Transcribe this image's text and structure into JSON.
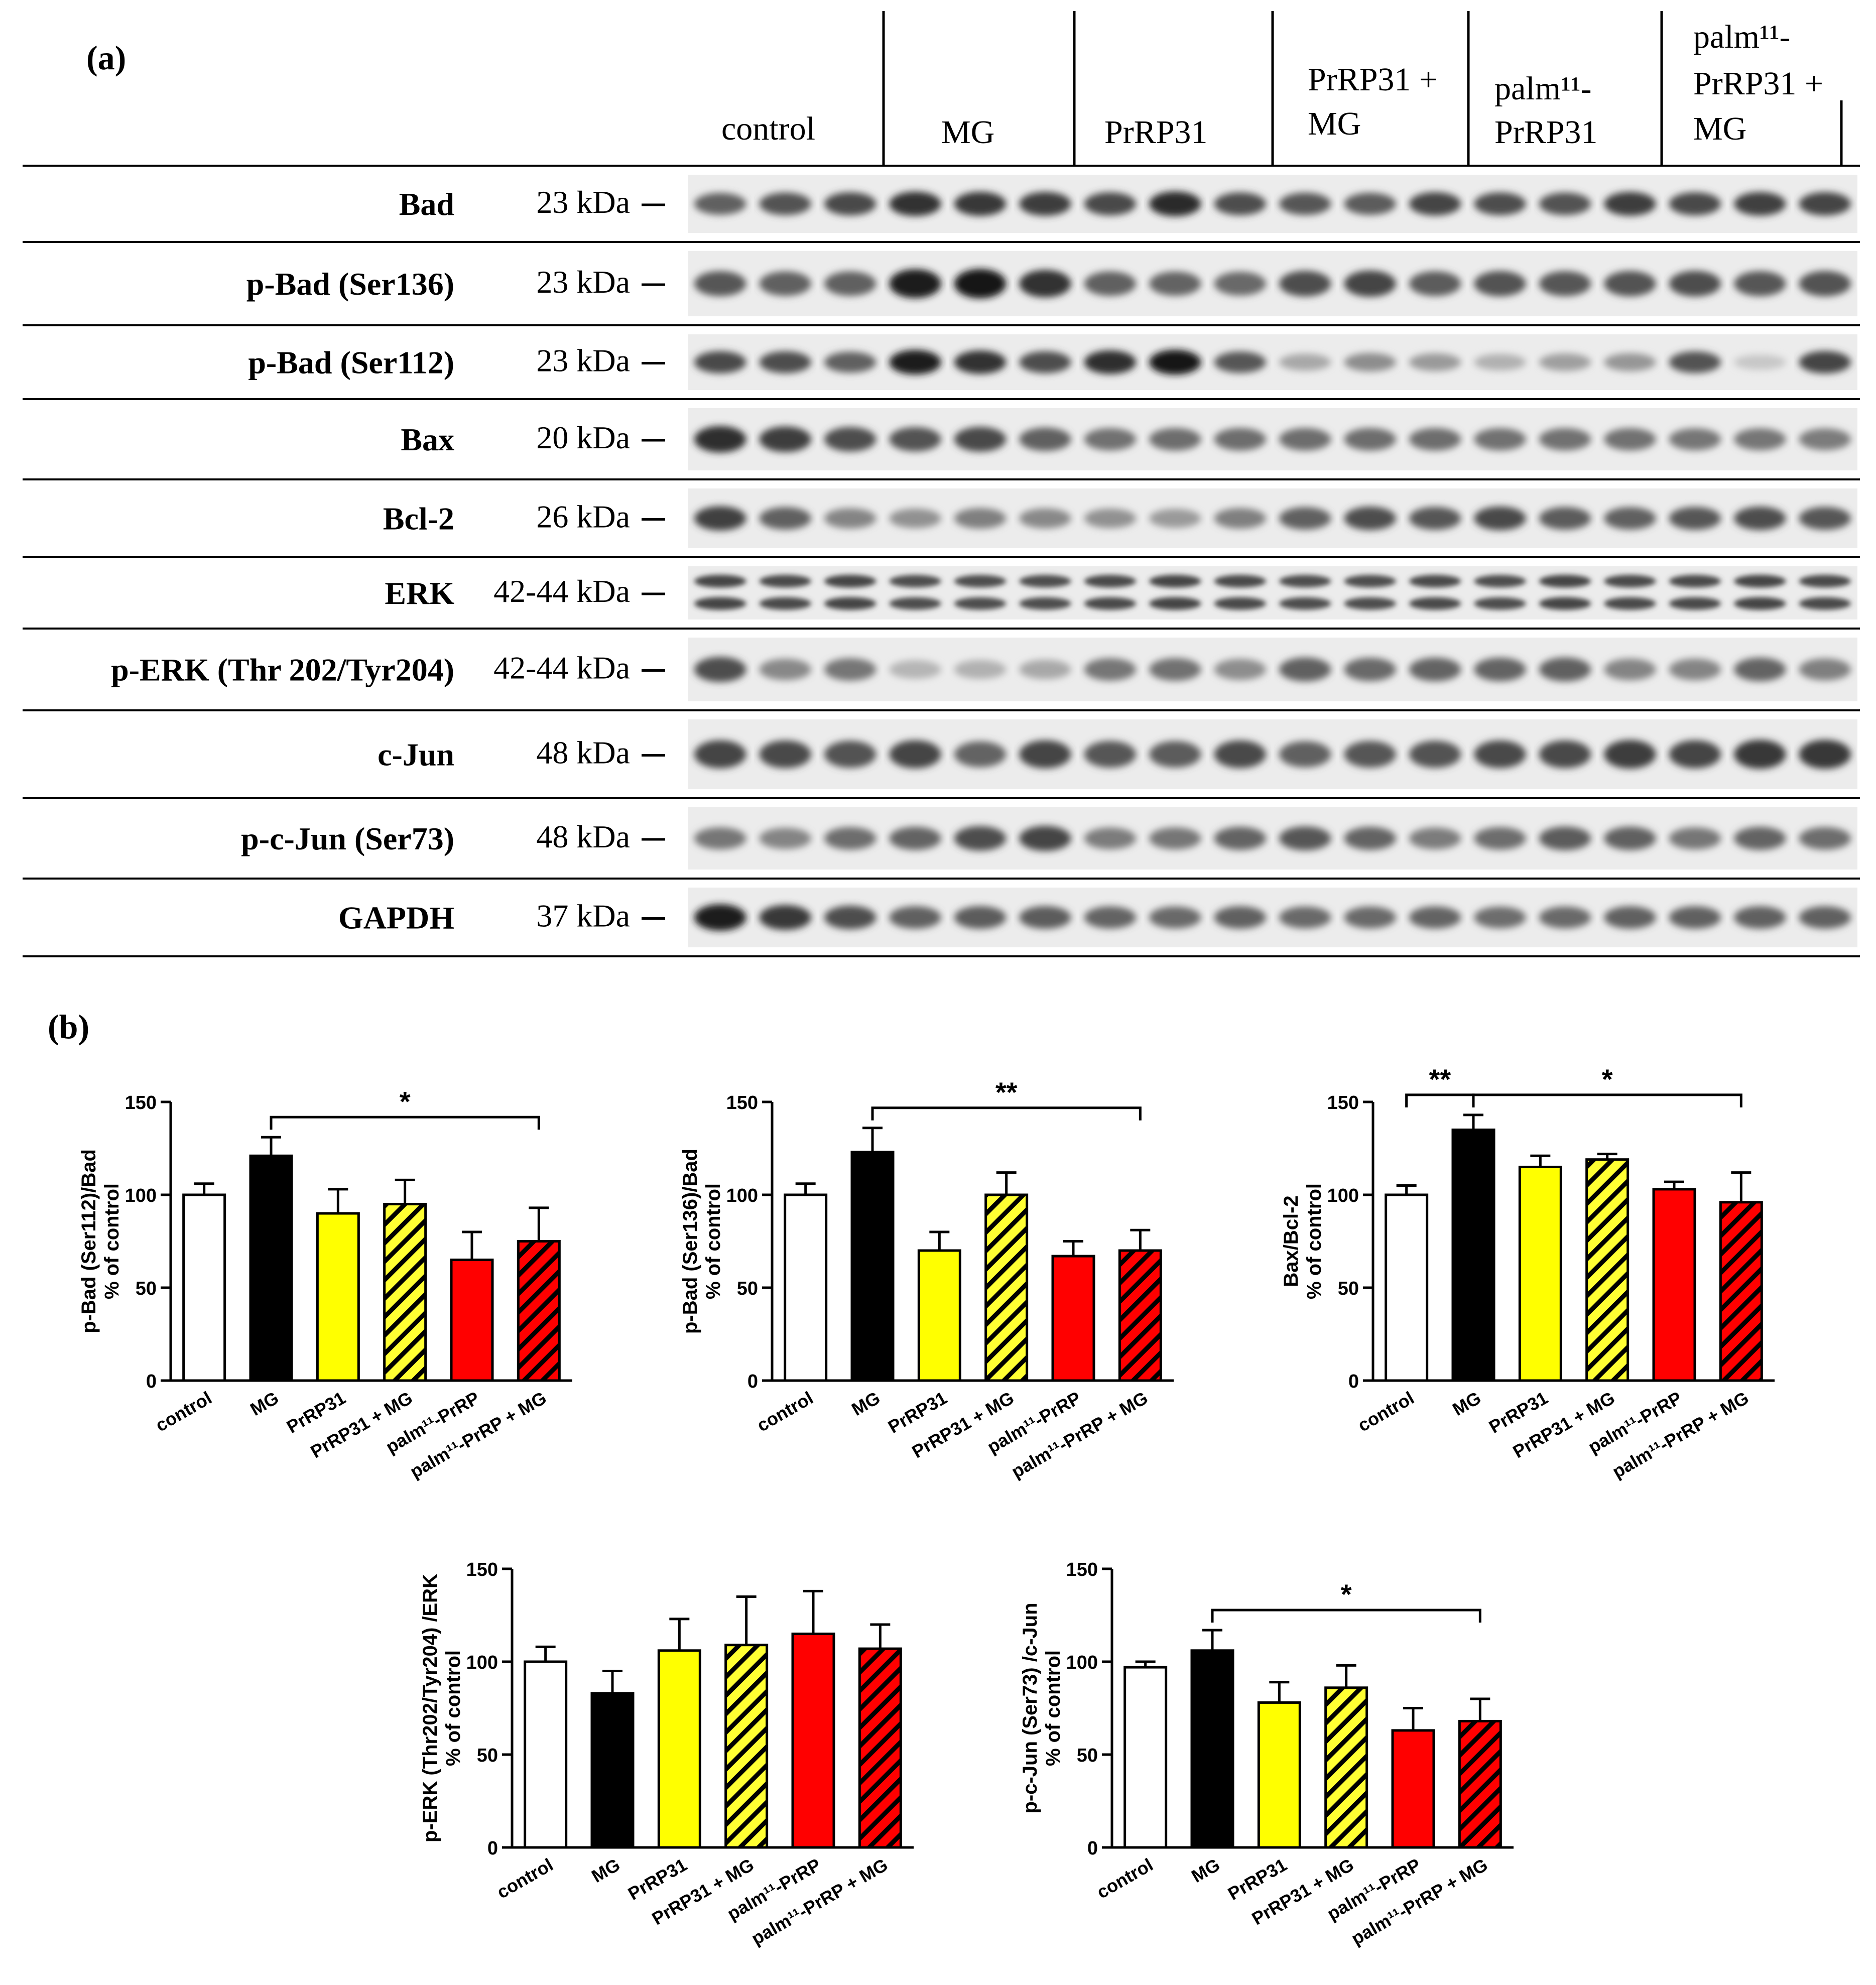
{
  "panel_a": {
    "label": "(a)",
    "groups": [
      {
        "lines": [
          "control"
        ]
      },
      {
        "lines": [
          "MG"
        ]
      },
      {
        "lines": [
          "PrRP31"
        ]
      },
      {
        "lines": [
          "PrRP31 +",
          "MG"
        ]
      },
      {
        "lines": [
          "palm¹¹-",
          "PrRP31"
        ]
      },
      {
        "lines": [
          "palm¹¹-",
          "PrRP31 +",
          "MG"
        ]
      }
    ],
    "blots": [
      {
        "name": "Bad",
        "size": "23 kDa",
        "intensities": [
          0.62,
          0.68,
          0.72,
          0.82,
          0.8,
          0.78,
          0.72,
          0.85,
          0.7,
          0.66,
          0.64,
          0.74,
          0.7,
          0.68,
          0.78,
          0.72,
          0.76,
          0.74
        ]
      },
      {
        "name": "p-Bad (Ser136)",
        "size": "23 kDa",
        "intensities": [
          0.66,
          0.62,
          0.62,
          0.92,
          0.96,
          0.82,
          0.62,
          0.6,
          0.58,
          0.7,
          0.74,
          0.64,
          0.68,
          0.66,
          0.68,
          0.7,
          0.66,
          0.68
        ]
      },
      {
        "name": "p-Bad (Ser112)",
        "size": "23 kDa",
        "intensities": [
          0.72,
          0.7,
          0.62,
          0.92,
          0.82,
          0.7,
          0.84,
          0.94,
          0.66,
          0.3,
          0.42,
          0.36,
          0.26,
          0.34,
          0.38,
          0.68,
          0.16,
          0.74
        ]
      },
      {
        "name": "Bax",
        "size": "20 kDa",
        "intensities": [
          0.84,
          0.78,
          0.7,
          0.68,
          0.72,
          0.62,
          0.54,
          0.56,
          0.56,
          0.56,
          0.56,
          0.56,
          0.54,
          0.54,
          0.54,
          0.52,
          0.52,
          0.5
        ]
      },
      {
        "name": "Bcl-2",
        "size": "26 kDa",
        "intensities": [
          0.76,
          0.62,
          0.46,
          0.4,
          0.48,
          0.44,
          0.4,
          0.36,
          0.48,
          0.62,
          0.7,
          0.66,
          0.72,
          0.64,
          0.62,
          0.66,
          0.7,
          0.66
        ]
      },
      {
        "name": "ERK",
        "size": "42-44 kDa",
        "intensities": [
          0.74,
          0.72,
          0.74,
          0.7,
          0.7,
          0.7,
          0.72,
          0.74,
          0.72,
          0.7,
          0.7,
          0.72,
          0.7,
          0.74,
          0.72,
          0.72,
          0.74,
          0.72
        ]
      },
      {
        "name": "p-ERK (Thr 202/Tyr204)",
        "size": "42-44 kDa",
        "intensities": [
          0.7,
          0.44,
          0.52,
          0.24,
          0.26,
          0.3,
          0.52,
          0.54,
          0.42,
          0.62,
          0.58,
          0.6,
          0.6,
          0.62,
          0.46,
          0.46,
          0.6,
          0.48
        ]
      },
      {
        "name": "c-Jun",
        "size": "48 kDa",
        "intensities": [
          0.74,
          0.72,
          0.68,
          0.74,
          0.6,
          0.74,
          0.66,
          0.64,
          0.72,
          0.62,
          0.66,
          0.68,
          0.72,
          0.72,
          0.78,
          0.74,
          0.8,
          0.8
        ]
      },
      {
        "name": "p-c-Jun (Ser73)",
        "size": "48 kDa",
        "intensities": [
          0.52,
          0.46,
          0.56,
          0.6,
          0.7,
          0.74,
          0.5,
          0.52,
          0.6,
          0.66,
          0.6,
          0.5,
          0.56,
          0.64,
          0.62,
          0.52,
          0.6,
          0.56
        ]
      },
      {
        "name": "GAPDH",
        "size": "37 kDa",
        "intensities": [
          0.92,
          0.8,
          0.7,
          0.62,
          0.64,
          0.64,
          0.6,
          0.58,
          0.62,
          0.58,
          0.58,
          0.6,
          0.56,
          0.58,
          0.62,
          0.62,
          0.62,
          0.62
        ]
      }
    ]
  },
  "panel_b": {
    "label": "(b)"
  },
  "chart_data": [
    {
      "type": "bar",
      "categories": [
        "control",
        "MG",
        "PrRP31",
        "PrRP31 + MG",
        "palm¹¹-PrRP",
        "palm¹¹-PrRP + MG"
      ],
      "values": [
        100,
        121,
        90,
        95,
        65,
        75
      ],
      "errors": [
        6,
        10,
        13,
        13,
        15,
        18
      ],
      "ylabel": [
        "p-Bad (Ser112)/Bad",
        "% of control"
      ],
      "ylim": [
        0,
        150
      ],
      "yticks": [
        0,
        50,
        100,
        150
      ],
      "significance": [
        {
          "from": 1,
          "to": 5,
          "label": "*"
        }
      ]
    },
    {
      "type": "bar",
      "categories": [
        "control",
        "MG",
        "PrRP31",
        "PrRP31 + MG",
        "palm¹¹-PrRP",
        "palm¹¹-PrRP + MG"
      ],
      "values": [
        100,
        123,
        70,
        100,
        67,
        70
      ],
      "errors": [
        6,
        13,
        10,
        12,
        8,
        11
      ],
      "ylabel": [
        "p-Bad (Ser136)/Bad",
        "% of control"
      ],
      "ylim": [
        0,
        150
      ],
      "yticks": [
        0,
        50,
        100,
        150
      ],
      "significance": [
        {
          "from": 1,
          "to": 5,
          "label": "**"
        }
      ]
    },
    {
      "type": "bar",
      "categories": [
        "control",
        "MG",
        "PrRP31",
        "PrRP31 + MG",
        "palm¹¹-PrRP",
        "palm¹¹-PrRP + MG"
      ],
      "values": [
        100,
        135,
        115,
        119,
        103,
        96
      ],
      "errors": [
        5,
        8,
        6,
        3,
        4,
        16
      ],
      "ylabel": [
        "Bax/Bcl-2",
        "% of control"
      ],
      "ylim": [
        0,
        150
      ],
      "yticks": [
        0,
        50,
        100,
        150
      ],
      "significance": [
        {
          "from": 0,
          "to": 1,
          "label": "**"
        },
        {
          "from": 1,
          "to": 5,
          "label": "*"
        }
      ]
    },
    {
      "type": "bar",
      "categories": [
        "control",
        "MG",
        "PrRP31",
        "PrRP31 + MG",
        "palm¹¹-PrRP",
        "palm¹¹-PrRP + MG"
      ],
      "values": [
        100,
        83,
        106,
        109,
        115,
        107
      ],
      "errors": [
        8,
        12,
        17,
        26,
        23,
        13
      ],
      "ylabel": [
        "p-ERK (Thr202/Tyr204) /ERK",
        "% of control"
      ],
      "ylim": [
        0,
        150
      ],
      "yticks": [
        0,
        50,
        100,
        150
      ],
      "significance": []
    },
    {
      "type": "bar",
      "categories": [
        "control",
        "MG",
        "PrRP31",
        "PrRP31 + MG",
        "palm¹¹-PrRP",
        "palm¹¹-PrRP + MG"
      ],
      "values": [
        97,
        106,
        78,
        86,
        63,
        68
      ],
      "errors": [
        3,
        11,
        11,
        12,
        12,
        12
      ],
      "ylabel": [
        "p-c-Jun (Ser73) /c-Jun",
        "% of control"
      ],
      "ylim": [
        0,
        150
      ],
      "yticks": [
        0,
        50,
        100,
        150
      ],
      "significance": [
        {
          "from": 1,
          "to": 5,
          "label": "*"
        }
      ]
    }
  ],
  "colors": {
    "control": "#ffffff",
    "MG": "#000000",
    "PrRP31": "#ffff00",
    "PrRP31 + MG": "#ffff33",
    "palm-PrRP": "#ff0000",
    "palm-PrRP + MG": "#ff0000",
    "hatch": "#000000"
  }
}
